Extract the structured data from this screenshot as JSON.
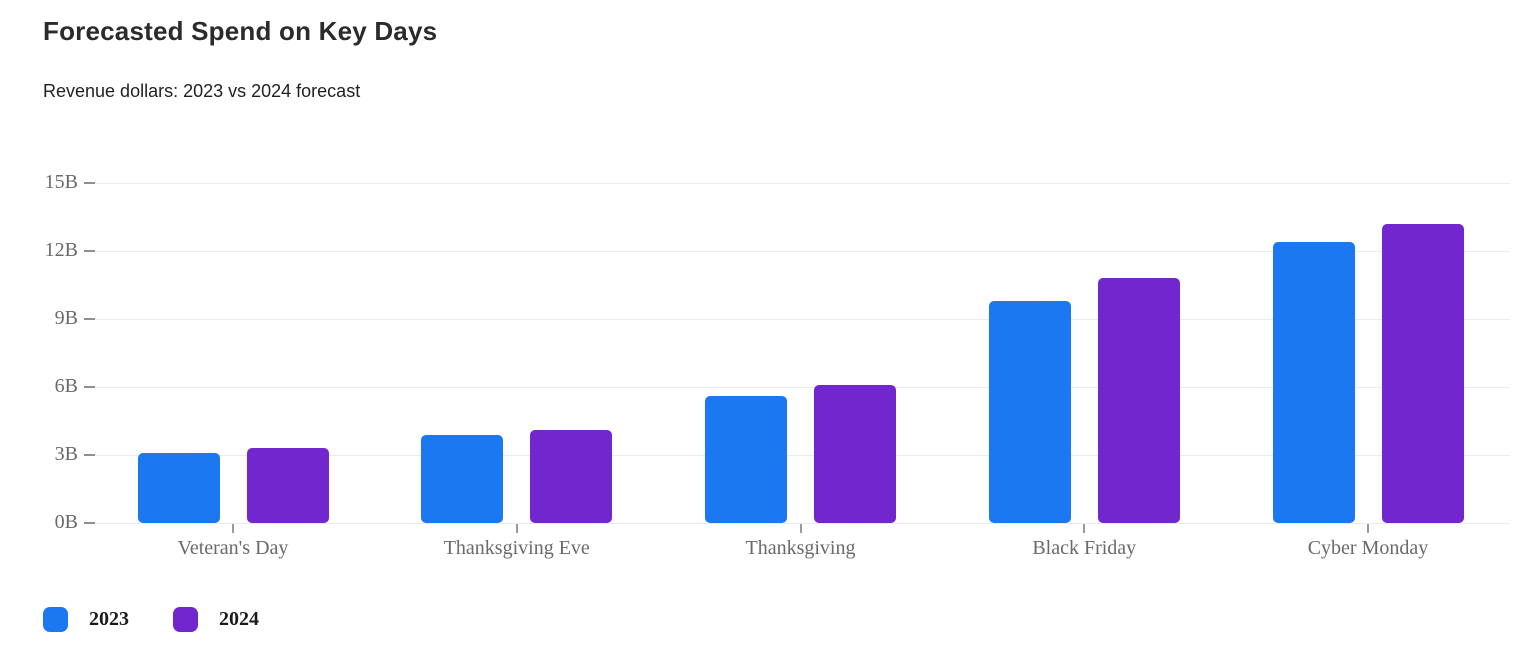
{
  "header": {
    "title": "Forecasted Spend on Key Days",
    "subtitle": "Revenue dollars: 2023 vs 2024 forecast"
  },
  "chart_data": {
    "type": "bar",
    "title": "Forecasted Spend on Key Days",
    "subtitle": "Revenue dollars: 2023 vs 2024 forecast",
    "categories": [
      "Veteran's Day",
      "Thanksgiving Eve",
      "Thanksgiving",
      "Black Friday",
      "Cyber Monday"
    ],
    "series": [
      {
        "name": "2023",
        "color": "#1b78f0",
        "values": [
          3.1,
          3.9,
          5.6,
          9.8,
          12.4
        ]
      },
      {
        "name": "2024",
        "color": "#7127cd",
        "values": [
          3.3,
          4.1,
          6.1,
          10.8,
          13.2
        ]
      }
    ],
    "unit": "B",
    "xlabel": "",
    "ylabel": "",
    "ylim": [
      0,
      15
    ],
    "ytick_step": 3,
    "ytick_labels": [
      "0B",
      "3B",
      "6B",
      "9B",
      "12B",
      "15B"
    ],
    "grid": true,
    "legend_position": "bottom-left"
  },
  "colors": {
    "grid": "#e8ebf7",
    "tick": "#8f8f8f",
    "axis_text": "#6a6a6a",
    "series_2023": "#1b78f0",
    "series_2024": "#7127cd"
  }
}
